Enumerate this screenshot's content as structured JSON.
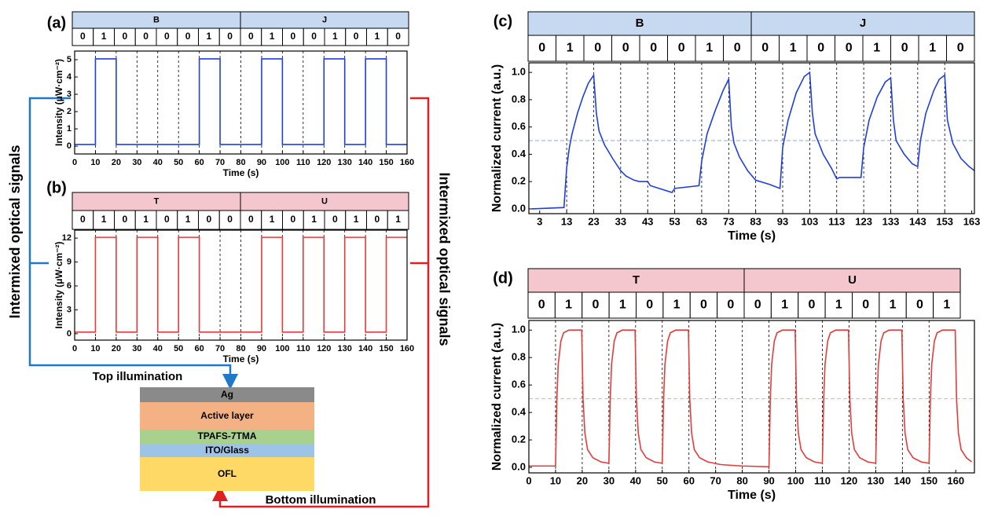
{
  "chart_data": [
    {
      "type": "line",
      "panel": "(a)",
      "header_groups": [
        "B",
        "J"
      ],
      "bits": [
        0,
        1,
        0,
        0,
        0,
        0,
        1,
        0,
        0,
        1,
        0,
        0,
        1,
        0,
        1,
        0
      ],
      "header_color": "#c6d9f1",
      "x": [
        0,
        10,
        10,
        20,
        20,
        60,
        60,
        70,
        70,
        90,
        90,
        100,
        100,
        120,
        120,
        130,
        130,
        140,
        140,
        150,
        150,
        160
      ],
      "values": [
        0.1,
        0.1,
        5.05,
        5.05,
        0.1,
        0.1,
        5.05,
        5.05,
        0.1,
        0.1,
        5.05,
        5.05,
        0.1,
        0.1,
        5.05,
        5.05,
        0.1,
        0.1,
        5.05,
        5.05,
        0.1,
        0.1
      ],
      "color": "#1f3fe0",
      "xlabel": "Time (s)",
      "ylabel": "Intensity (μW·cm⁻²)",
      "xlim": [
        0,
        160
      ],
      "xticks": [
        0,
        10,
        20,
        30,
        40,
        50,
        60,
        70,
        80,
        90,
        100,
        110,
        120,
        130,
        140,
        150,
        160
      ],
      "ylim": [
        -0.45,
        5.5
      ],
      "yticks": [
        0,
        1,
        2,
        3,
        4,
        5
      ]
    },
    {
      "type": "line",
      "panel": "(b)",
      "header_groups": [
        "T",
        "U"
      ],
      "bits": [
        0,
        1,
        0,
        1,
        0,
        1,
        0,
        0,
        0,
        1,
        0,
        1,
        0,
        1,
        0,
        1
      ],
      "header_color": "#f4c7cf",
      "x": [
        0,
        10,
        10,
        20,
        20,
        30,
        30,
        40,
        40,
        50,
        50,
        60,
        60,
        90,
        90,
        100,
        100,
        110,
        110,
        120,
        120,
        130,
        130,
        140,
        140,
        150,
        150,
        160
      ],
      "values": [
        0.2,
        0.2,
        12.1,
        12.1,
        0.2,
        0.2,
        12.1,
        12.1,
        0.2,
        0.2,
        12.1,
        12.1,
        0.2,
        0.2,
        12.1,
        12.1,
        0.2,
        0.2,
        12.1,
        12.1,
        0.2,
        0.2,
        12.1,
        12.1,
        0.2,
        0.2,
        12.1,
        12.1
      ],
      "color": "#e83a3a",
      "xlabel": "Time (s)",
      "ylabel": "Intensity (μW·cm⁻²)",
      "xlim": [
        0,
        160
      ],
      "xticks": [
        0,
        10,
        20,
        30,
        40,
        50,
        60,
        70,
        80,
        90,
        100,
        110,
        120,
        130,
        140,
        150,
        160
      ],
      "ylim": [
        -0.8,
        13
      ],
      "yticks": [
        0,
        3,
        6,
        9,
        12
      ]
    },
    {
      "type": "line",
      "panel": "(c)",
      "header_groups": [
        "B",
        "J"
      ],
      "bits": [
        0,
        1,
        0,
        0,
        0,
        0,
        1,
        0,
        0,
        1,
        0,
        0,
        1,
        0,
        1,
        0
      ],
      "header_color": "#c6d9f1",
      "x": [
        0,
        12,
        13,
        14,
        15,
        17,
        19,
        21,
        23,
        24,
        25,
        27,
        30,
        33,
        35,
        38,
        40,
        43,
        44,
        52,
        53,
        62,
        63,
        65,
        68,
        71,
        73,
        74,
        75,
        77,
        80,
        83,
        88,
        92,
        93,
        95,
        98,
        101,
        103,
        104,
        105,
        108,
        111,
        113,
        114,
        122,
        123,
        125,
        128,
        131,
        133,
        134,
        135,
        138,
        141,
        143,
        144,
        146,
        149,
        151,
        153,
        154,
        156,
        159,
        162,
        164
      ],
      "values": [
        0,
        0.01,
        0.3,
        0.45,
        0.55,
        0.7,
        0.82,
        0.92,
        0.98,
        0.7,
        0.57,
        0.47,
        0.37,
        0.28,
        0.24,
        0.21,
        0.2,
        0.2,
        0.17,
        0.12,
        0.15,
        0.17,
        0.35,
        0.55,
        0.72,
        0.87,
        0.95,
        0.6,
        0.48,
        0.38,
        0.28,
        0.21,
        0.18,
        0.15,
        0.45,
        0.65,
        0.85,
        0.97,
        1.0,
        0.7,
        0.55,
        0.4,
        0.3,
        0.22,
        0.23,
        0.23,
        0.45,
        0.65,
        0.82,
        0.93,
        0.96,
        0.65,
        0.5,
        0.4,
        0.33,
        0.31,
        0.5,
        0.7,
        0.87,
        0.95,
        0.98,
        0.65,
        0.48,
        0.37,
        0.31,
        0.28
      ],
      "color": "#1f3fe0",
      "reference_line": 0.5,
      "reference_color": "#8fa8dc",
      "xlabel": "Time (s)",
      "ylabel": "Normalized current (a.u.)",
      "xlim": [
        -1,
        164
      ],
      "xticks": [
        3,
        13,
        23,
        33,
        43,
        53,
        63,
        73,
        83,
        93,
        103,
        113,
        123,
        133,
        143,
        153,
        163
      ],
      "ylim": [
        -0.035,
        1.07
      ],
      "yticks": [
        {
          "value": 0,
          "label": "0.0"
        },
        0.2,
        0.4,
        0.6,
        0.8,
        {
          "value": 1,
          "label": "1.0"
        }
      ]
    },
    {
      "type": "line",
      "panel": "(d)",
      "header_groups": [
        "T",
        "U"
      ],
      "bits": [
        0,
        1,
        0,
        1,
        0,
        1,
        0,
        0,
        0,
        1,
        0,
        1,
        0,
        1,
        0,
        1
      ],
      "header_color": "#f4c7cf",
      "x": [
        0,
        10,
        10.5,
        11,
        12,
        13,
        15,
        19.8,
        20.3,
        21,
        22,
        24,
        27,
        30,
        30.5,
        31,
        32,
        33,
        35,
        39.8,
        40.3,
        41,
        42,
        44,
        47,
        50,
        50.5,
        51,
        52,
        53,
        55,
        59.8,
        60.3,
        61,
        62,
        64,
        67,
        72,
        80,
        90,
        90.5,
        91,
        92,
        93,
        95,
        99.8,
        100.3,
        101,
        102,
        104,
        107,
        110,
        110.5,
        111,
        112,
        113,
        115,
        119.8,
        120.3,
        121,
        122,
        124,
        127,
        130,
        130.5,
        131,
        132,
        133,
        135,
        139.8,
        140.3,
        141,
        142,
        144,
        147,
        150,
        150.5,
        151,
        152,
        153,
        155,
        159.8,
        160.3,
        161,
        162,
        164,
        166
      ],
      "values": [
        0.01,
        0.01,
        0.5,
        0.75,
        0.92,
        0.98,
        1.0,
        1.0,
        0.5,
        0.25,
        0.13,
        0.07,
        0.04,
        0.03,
        0.5,
        0.75,
        0.92,
        0.98,
        1.0,
        1.0,
        0.5,
        0.25,
        0.13,
        0.07,
        0.04,
        0.03,
        0.5,
        0.75,
        0.92,
        0.98,
        1.0,
        1.0,
        0.5,
        0.25,
        0.13,
        0.07,
        0.04,
        0.02,
        0.01,
        0.005,
        0.5,
        0.75,
        0.92,
        0.98,
        1.0,
        1.0,
        0.5,
        0.25,
        0.13,
        0.07,
        0.04,
        0.03,
        0.5,
        0.75,
        0.92,
        0.98,
        1.0,
        1.0,
        0.5,
        0.25,
        0.13,
        0.07,
        0.04,
        0.03,
        0.5,
        0.75,
        0.92,
        0.98,
        1.0,
        1.0,
        0.5,
        0.25,
        0.13,
        0.07,
        0.04,
        0.03,
        0.5,
        0.75,
        0.92,
        0.98,
        1.0,
        1.0,
        0.5,
        0.25,
        0.13,
        0.07,
        0.04
      ],
      "color": "#e83a3a",
      "reference_line": 0.5,
      "reference_color": "#f0a8a8",
      "xlabel": "Time (s)",
      "ylabel": "Normalized current (a.u.)",
      "xlim": [
        0,
        167
      ],
      "xticks": [
        0,
        10,
        20,
        30,
        40,
        50,
        60,
        70,
        80,
        90,
        100,
        110,
        120,
        130,
        140,
        150,
        160
      ],
      "ylim": [
        -0.04,
        1.07
      ],
      "yticks": [
        {
          "value": 0,
          "label": "0.0"
        },
        0.2,
        0.4,
        0.6,
        0.8,
        {
          "value": 1,
          "label": "1.0"
        }
      ]
    }
  ],
  "diagram": {
    "left_label": "Intermixed optical signals",
    "right_label": "Intermixed optical signals",
    "top_illumination": "Top illumination",
    "bottom_illumination": "Bottom illumination",
    "layers": [
      "Ag",
      "Active layer",
      "TPAFS-7TMA",
      "ITO/Glass",
      "OFL"
    ]
  }
}
